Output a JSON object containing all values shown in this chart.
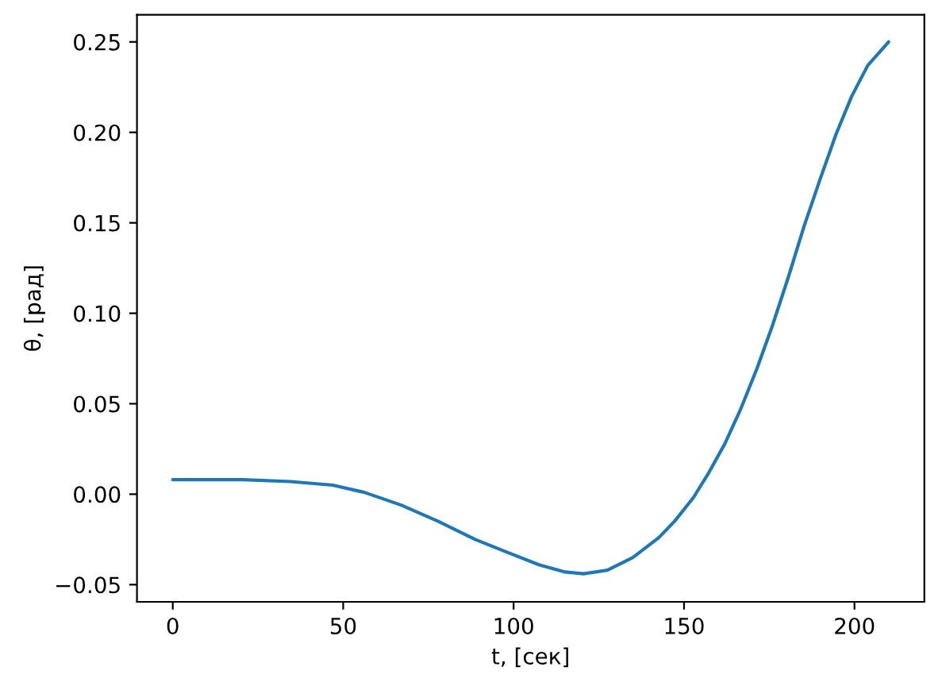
{
  "chart_data": {
    "type": "line",
    "xlabel": "t, [сек]",
    "ylabel": "θ, [рад]",
    "series": [
      {
        "color": "#1f77b4",
        "x": [
          0,
          10,
          20.5,
          34.5,
          46.9,
          56.2,
          67,
          77.9,
          88.7,
          98,
          107.4,
          115.1,
          120.5,
          127.5,
          135,
          142.6,
          147.2,
          152.7,
          157.3,
          162,
          166.6,
          171.3,
          175.9,
          180.6,
          185.2,
          189.9,
          194.6,
          199.2,
          203.9,
          210
        ],
        "values": [
          0.008,
          0.008,
          0.008,
          0.007,
          0.005,
          0.001,
          -0.006,
          -0.015,
          -0.025,
          -0.032,
          -0.039,
          -0.043,
          -0.044,
          -0.042,
          -0.035,
          -0.024,
          -0.015,
          -0.002,
          0.012,
          0.028,
          0.047,
          0.069,
          0.093,
          0.12,
          0.148,
          0.174,
          0.199,
          0.22,
          0.237,
          0.25
        ]
      }
    ],
    "xlim": [
      -10.5,
      220.5
    ],
    "ylim": [
      -0.0595,
      0.265
    ],
    "xticks": [
      0,
      50,
      100,
      150,
      200
    ],
    "yticks": [
      {
        "value": -0.05,
        "label": "−0.05"
      },
      {
        "value": 0.0,
        "label": "0.00"
      },
      {
        "value": 0.05,
        "label": "0.05"
      },
      {
        "value": 0.1,
        "label": "0.10"
      },
      {
        "value": 0.15,
        "label": "0.15"
      },
      {
        "value": 0.2,
        "label": "0.20"
      },
      {
        "value": 0.25,
        "label": "0.25"
      }
    ],
    "grid": false,
    "legend": false,
    "line_style": "solid",
    "marker": "none"
  }
}
